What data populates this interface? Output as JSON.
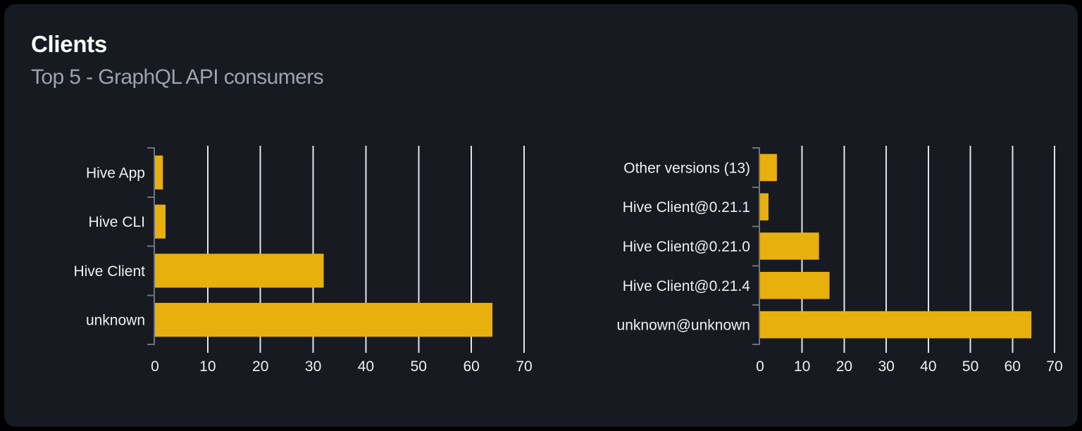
{
  "card": {
    "title": "Clients",
    "subtitle": "Top 5 - GraphQL API consumers"
  },
  "colors": {
    "page_bg": "#000000",
    "card_bg": "#171a21",
    "title": "#ffffff",
    "subtitle": "#9ca3af",
    "bar": "#e8b00c",
    "grid_line": "#e0e4ee",
    "axis_line": "#6e727b",
    "tick_label": "#eef0f2"
  },
  "chart_data": [
    {
      "type": "bar",
      "orientation": "horizontal",
      "title": "",
      "categories": [
        "Hive App",
        "Hive CLI",
        "Hive Client",
        "unknown"
      ],
      "values": [
        1.5,
        2,
        32,
        64
      ],
      "xlim": [
        0,
        70
      ],
      "xticks": [
        0,
        10,
        20,
        30,
        40,
        50,
        60,
        70
      ],
      "grid": true,
      "legend": false,
      "bar_color": "#e8b00c"
    },
    {
      "type": "bar",
      "orientation": "horizontal",
      "title": "",
      "categories": [
        "Other versions (13)",
        "Hive Client@0.21.1",
        "Hive Client@0.21.0",
        "Hive Client@0.21.4",
        "unknown@unknown"
      ],
      "values": [
        4,
        2,
        14,
        16.5,
        64.5
      ],
      "xlim": [
        0,
        70
      ],
      "xticks": [
        0,
        10,
        20,
        30,
        40,
        50,
        60,
        70
      ],
      "grid": true,
      "legend": false,
      "bar_color": "#e8b00c"
    }
  ]
}
